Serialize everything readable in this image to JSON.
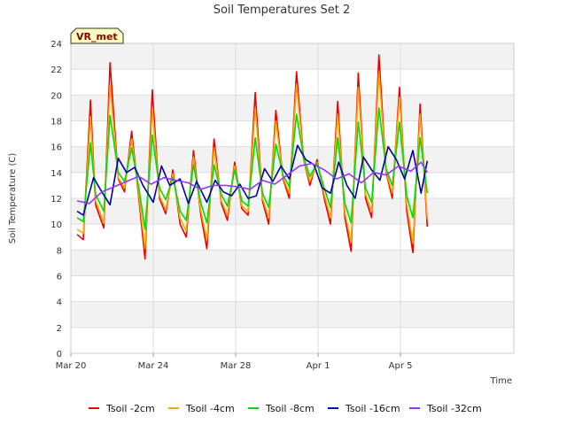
{
  "chart_data": {
    "type": "line",
    "title": "Soil Temperatures Set 2",
    "xlabel": "Time",
    "ylabel": "Soil Temperature (C)",
    "badge": "VR_met",
    "xlim": [
      0,
      21.5
    ],
    "ylim": [
      0,
      24
    ],
    "yticks": [
      0,
      2,
      4,
      6,
      8,
      10,
      12,
      14,
      16,
      18,
      20,
      22,
      24
    ],
    "xticks": [
      {
        "value": 0,
        "label": "Mar 20"
      },
      {
        "value": 4,
        "label": "Mar 24"
      },
      {
        "value": 8,
        "label": "Mar 28"
      },
      {
        "value": 12,
        "label": "Apr 1"
      },
      {
        "value": 16,
        "label": "Apr 5"
      }
    ],
    "grid": true,
    "legend_position": "bottom",
    "x_units": "days since Mar 20",
    "series": [
      {
        "name": "Tsoil -2cm",
        "color": "#ee0000",
        "x": [
          0.3,
          0.6,
          0.95,
          1.2,
          1.6,
          1.9,
          2.3,
          2.6,
          2.95,
          3.3,
          3.6,
          3.95,
          4.3,
          4.6,
          4.95,
          5.3,
          5.6,
          5.95,
          6.3,
          6.6,
          6.95,
          7.3,
          7.6,
          7.95,
          8.3,
          8.6,
          8.95,
          9.3,
          9.6,
          9.95,
          10.3,
          10.6,
          10.95,
          11.3,
          11.6,
          11.95,
          12.3,
          12.6,
          12.95,
          13.3,
          13.6,
          13.95,
          14.3,
          14.6,
          14.95,
          15.3,
          15.6,
          15.95,
          16.3,
          16.6,
          16.95,
          17.3
        ],
        "y": [
          9.2,
          8.8,
          19.6,
          11.5,
          9.7,
          22.5,
          13.5,
          12.5,
          17.2,
          12.0,
          7.3,
          20.4,
          12.0,
          10.8,
          14.2,
          10.0,
          9.0,
          15.7,
          10.8,
          8.1,
          16.6,
          11.6,
          10.3,
          14.8,
          11.2,
          10.7,
          20.2,
          11.8,
          10.0,
          18.8,
          13.5,
          12.0,
          21.8,
          15.0,
          13.0,
          15.0,
          12.0,
          10.0,
          19.5,
          10.5,
          7.9,
          21.7,
          12.0,
          10.5,
          23.1,
          14.0,
          12.0,
          20.6,
          11.0,
          7.8,
          19.3,
          9.8
        ]
      },
      {
        "name": "Tsoil -4cm",
        "color": "#ffa500",
        "x": [
          0.3,
          0.6,
          0.95,
          1.2,
          1.6,
          1.9,
          2.3,
          2.6,
          2.95,
          3.3,
          3.6,
          3.95,
          4.3,
          4.6,
          4.95,
          5.3,
          5.6,
          5.95,
          6.3,
          6.6,
          6.95,
          7.3,
          7.6,
          7.95,
          8.3,
          8.6,
          8.95,
          9.3,
          9.6,
          9.95,
          10.3,
          10.6,
          10.95,
          11.3,
          11.6,
          11.95,
          12.3,
          12.6,
          12.95,
          13.3,
          13.6,
          13.95,
          14.3,
          14.6,
          14.95,
          15.3,
          15.6,
          15.95,
          16.3,
          16.6,
          16.95,
          17.3
        ],
        "y": [
          9.6,
          9.3,
          18.3,
          11.8,
          10.1,
          20.8,
          13.6,
          12.8,
          16.6,
          12.3,
          8.1,
          19.0,
          12.2,
          11.1,
          13.9,
          10.4,
          9.5,
          15.2,
          11.1,
          8.8,
          15.9,
          11.8,
          10.7,
          14.5,
          11.4,
          11.0,
          19.0,
          12.0,
          10.5,
          18.0,
          13.6,
          12.4,
          20.8,
          15.0,
          13.3,
          14.8,
          12.3,
          10.5,
          18.5,
          10.9,
          8.6,
          20.6,
          12.3,
          11.0,
          21.8,
          14.1,
          12.4,
          19.8,
          11.5,
          8.5,
          18.5,
          10.4
        ]
      },
      {
        "name": "Tsoil -8cm",
        "color": "#00dd00",
        "x": [
          0.3,
          0.6,
          0.95,
          1.2,
          1.6,
          1.9,
          2.3,
          2.6,
          2.95,
          3.3,
          3.6,
          3.95,
          4.3,
          4.6,
          4.95,
          5.3,
          5.6,
          5.95,
          6.3,
          6.6,
          6.95,
          7.3,
          7.6,
          7.95,
          8.3,
          8.6,
          8.95,
          9.3,
          9.6,
          9.95,
          10.3,
          10.6,
          10.95,
          11.3,
          11.6,
          11.95,
          12.3,
          12.6,
          12.95,
          13.3,
          13.6,
          13.95,
          14.3,
          14.6,
          14.95,
          15.3,
          15.6,
          15.95,
          16.3,
          16.6,
          16.95,
          17.3
        ],
        "y": [
          10.5,
          10.2,
          16.3,
          12.3,
          11.0,
          18.4,
          14.0,
          13.3,
          15.9,
          12.8,
          9.6,
          16.9,
          12.8,
          11.9,
          13.6,
          11.0,
          10.3,
          14.6,
          11.7,
          10.1,
          14.6,
          12.3,
          11.4,
          14.2,
          11.8,
          11.4,
          16.7,
          12.4,
          11.3,
          16.2,
          13.8,
          12.9,
          18.5,
          15.1,
          13.7,
          14.7,
          12.8,
          11.3,
          16.7,
          11.6,
          10.1,
          17.9,
          12.8,
          11.7,
          19.0,
          14.3,
          13.0,
          17.9,
          12.2,
          10.5,
          16.7,
          12.4
        ]
      },
      {
        "name": "Tsoil -16cm",
        "color": "#0000aa",
        "x": [
          0.3,
          0.6,
          1.1,
          1.5,
          1.9,
          2.3,
          2.7,
          3.1,
          3.5,
          4.0,
          4.4,
          4.8,
          5.3,
          5.7,
          6.1,
          6.6,
          7.0,
          7.4,
          7.8,
          8.2,
          8.6,
          9.0,
          9.4,
          9.8,
          10.2,
          10.6,
          11.0,
          11.4,
          11.8,
          12.2,
          12.6,
          13.0,
          13.4,
          13.8,
          14.2,
          14.6,
          15.0,
          15.4,
          15.8,
          16.2,
          16.6,
          17.0,
          17.3
        ],
        "y": [
          11.0,
          10.7,
          13.6,
          12.5,
          11.5,
          15.1,
          14.0,
          14.4,
          13.0,
          11.7,
          14.5,
          13.0,
          13.5,
          11.6,
          13.3,
          11.7,
          13.4,
          12.5,
          12.2,
          13.1,
          12.0,
          12.2,
          14.3,
          13.3,
          14.5,
          13.5,
          16.1,
          15.0,
          14.6,
          12.8,
          12.4,
          14.8,
          13.0,
          12.0,
          15.2,
          14.2,
          13.4,
          16.0,
          15.0,
          13.5,
          15.7,
          12.4,
          14.9
        ]
      },
      {
        "name": "Tsoil -32cm",
        "color": "#9933ff",
        "x": [
          0.3,
          0.9,
          1.5,
          2.1,
          2.7,
          3.3,
          3.9,
          4.5,
          5.1,
          5.7,
          6.3,
          6.9,
          7.5,
          8.1,
          8.7,
          9.3,
          9.9,
          10.5,
          11.1,
          11.7,
          12.3,
          12.9,
          13.5,
          14.1,
          14.7,
          15.3,
          15.9,
          16.5,
          17.0,
          17.3
        ],
        "y": [
          11.8,
          11.6,
          12.5,
          12.9,
          13.3,
          13.7,
          13.1,
          13.6,
          13.4,
          13.2,
          12.7,
          13.0,
          13.0,
          12.9,
          12.7,
          13.4,
          13.1,
          13.8,
          14.5,
          14.7,
          14.2,
          13.5,
          13.9,
          13.2,
          14.0,
          13.8,
          14.5,
          14.1,
          14.8,
          14.0
        ]
      }
    ]
  }
}
